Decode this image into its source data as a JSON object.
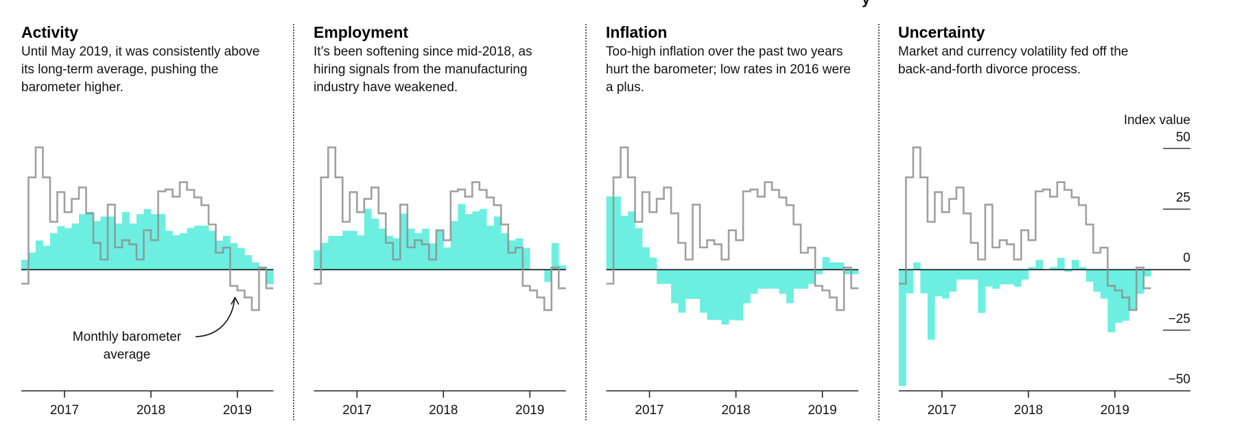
{
  "header_fragment": "y",
  "colors": {
    "bar": "#6cefe1",
    "barometer_line": "#8e8e8e",
    "zero_line": "#111111",
    "axis": "#222222"
  },
  "annotation": {
    "line1": "Monthly barometer",
    "line2": "average"
  },
  "y_axis": {
    "title": "Index value",
    "ticks": [
      "50",
      "25",
      "0",
      "−25",
      "−50"
    ]
  },
  "panels": [
    {
      "title": "Activity",
      "description": "Until May 2019, it was consistently above its long-term average, pushing the barometer higher."
    },
    {
      "title": "Employment",
      "description": "It’s been softening since mid-2018, as hiring signals from the manufacturing industry have weakened."
    },
    {
      "title": "Inflation",
      "description": "Too-high inflation over the past two years hurt the barometer; low rates in 2016 were a plus."
    },
    {
      "title": "Uncertainty",
      "description": "Market and currency volatility fed off the back-and-forth divorce process."
    }
  ],
  "chart_data": [
    {
      "type": "bar",
      "title": "Activity",
      "x_start": "2016-07",
      "x_end": "2019-05",
      "x_ticks": [
        "2017",
        "2018",
        "2019"
      ],
      "ylabel": "Index value",
      "ylim": [
        -50,
        50
      ],
      "grid": false,
      "series": [
        {
          "name": "Activity component",
          "style": "bar",
          "values": [
            4.1,
            7.1,
            12.1,
            9.9,
            15.1,
            18.0,
            17.2,
            19.1,
            23.0,
            23.9,
            20.1,
            22.0,
            22.0,
            19.1,
            23.9,
            19.1,
            23.0,
            25.1,
            23.0,
            23.0,
            16.1,
            14.2,
            15.1,
            17.2,
            18.2,
            18.2,
            16.1,
            12.0,
            14.0,
            11.0,
            9.0,
            6.0,
            3.0,
            0.8,
            -6.0
          ]
        },
        {
          "name": "Monthly barometer average",
          "style": "step-line",
          "values": [
            -5.8,
            38.2,
            50.6,
            38.2,
            19.8,
            32.1,
            23.8,
            29.3,
            34.0,
            23.3,
            11.1,
            4.2,
            26.9,
            9.2,
            12.2,
            10.5,
            4.2,
            16.3,
            12.2,
            32.4,
            33.2,
            30.2,
            36.2,
            33.0,
            29.9,
            26.7,
            18.7,
            7.0,
            9.1,
            -6.7,
            -8.6,
            -11.5,
            -16.7,
            0.9,
            -7.7
          ]
        }
      ]
    },
    {
      "type": "bar",
      "title": "Employment",
      "x_start": "2016-07",
      "x_end": "2019-05",
      "x_ticks": [
        "2017",
        "2018",
        "2019"
      ],
      "ylabel": "Index value",
      "ylim": [
        -50,
        50
      ],
      "grid": false,
      "series": [
        {
          "name": "Employment component",
          "style": "bar",
          "values": [
            8.0,
            11.1,
            14.0,
            14.0,
            16.1,
            16.1,
            14.2,
            25.2,
            21.1,
            17.0,
            14.0,
            13.0,
            23.2,
            17.0,
            15.1,
            17.0,
            10.9,
            16.1,
            9.2,
            20.1,
            27.2,
            23.0,
            24.1,
            25.1,
            18.2,
            22.0,
            15.1,
            12.1,
            13.0,
            9.0,
            0.0,
            0.0,
            -5.1,
            11.0,
            1.8
          ]
        },
        {
          "name": "Monthly barometer average",
          "style": "step-line",
          "values": [
            -5.8,
            38.2,
            50.6,
            38.2,
            19.8,
            32.1,
            23.8,
            29.3,
            34.0,
            23.3,
            11.1,
            4.2,
            26.9,
            9.2,
            12.2,
            10.5,
            4.2,
            16.3,
            12.2,
            32.4,
            33.2,
            30.2,
            36.2,
            33.0,
            29.9,
            26.7,
            18.7,
            7.0,
            9.1,
            -6.7,
            -8.6,
            -11.5,
            -16.7,
            0.9,
            -7.7
          ]
        }
      ]
    },
    {
      "type": "bar",
      "title": "Inflation",
      "x_start": "2016-07",
      "x_end": "2019-05",
      "x_ticks": [
        "2017",
        "2018",
        "2019"
      ],
      "ylabel": "Index value",
      "ylim": [
        -50,
        50
      ],
      "grid": false,
      "series": [
        {
          "name": "Inflation component",
          "style": "bar",
          "values": [
            30.3,
            30.3,
            22.2,
            24.1,
            17.2,
            9.3,
            5.0,
            -5.9,
            -5.9,
            -13.9,
            -17.8,
            -12.1,
            -12.1,
            -17.8,
            -20.8,
            -20.8,
            -22.7,
            -20.8,
            -21.0,
            -13.9,
            -10.0,
            -7.9,
            -7.9,
            -7.9,
            -10.0,
            -13.9,
            -7.9,
            -7.9,
            -5.9,
            -1.9,
            5.2,
            3.0,
            3.0,
            -1.9,
            -1.9
          ]
        },
        {
          "name": "Monthly barometer average",
          "style": "step-line",
          "values": [
            -5.8,
            38.2,
            50.6,
            38.2,
            19.8,
            32.1,
            23.8,
            29.3,
            34.0,
            23.3,
            11.1,
            4.2,
            26.9,
            9.2,
            12.2,
            10.5,
            4.2,
            16.3,
            12.2,
            32.4,
            33.2,
            30.2,
            36.2,
            33.0,
            29.9,
            26.7,
            18.7,
            7.0,
            9.1,
            -6.7,
            -8.6,
            -11.5,
            -16.7,
            0.9,
            -7.7
          ]
        }
      ]
    },
    {
      "type": "bar",
      "title": "Uncertainty",
      "x_start": "2016-07",
      "x_end": "2019-05",
      "x_ticks": [
        "2017",
        "2018",
        "2019"
      ],
      "ylabel": "Index value",
      "ylim": [
        -50,
        50
      ],
      "grid": false,
      "series": [
        {
          "name": "Uncertainty component",
          "style": "bar",
          "values": [
            -48.1,
            -9.8,
            3.0,
            -9.8,
            -29.0,
            -11.0,
            -11.9,
            -9.1,
            -4.1,
            -4.1,
            -4.1,
            -17.9,
            -7.0,
            -7.9,
            -6.1,
            -6.1,
            -7.0,
            -4.1,
            1.1,
            4.0,
            0.0,
            1.1,
            4.9,
            -0.9,
            4.0,
            1.1,
            -5.0,
            -9.1,
            -12.0,
            -25.9,
            -22.0,
            -21.1,
            -16.7,
            -10.0,
            -2.8
          ]
        },
        {
          "name": "Monthly barometer average",
          "style": "step-line",
          "values": [
            -5.8,
            38.2,
            50.6,
            38.2,
            19.8,
            32.1,
            23.8,
            29.3,
            34.0,
            23.3,
            11.1,
            4.2,
            26.9,
            9.2,
            12.2,
            10.5,
            4.2,
            16.3,
            12.2,
            32.4,
            33.2,
            30.2,
            36.2,
            33.0,
            29.9,
            26.7,
            18.7,
            7.0,
            9.1,
            -6.7,
            -8.6,
            -11.5,
            -16.7,
            0.9,
            -7.7
          ]
        }
      ]
    }
  ]
}
